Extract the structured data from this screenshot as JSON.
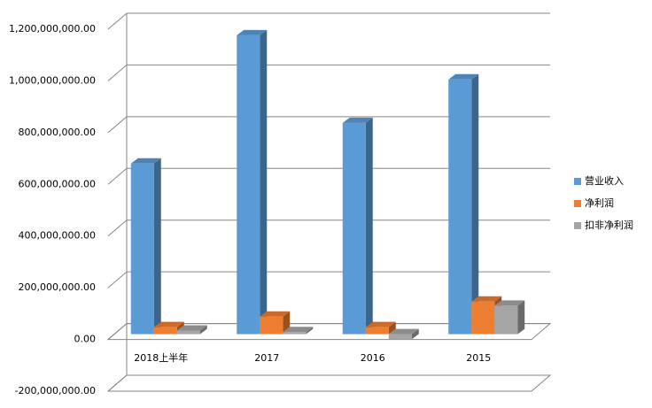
{
  "chart_data": {
    "type": "bar3d",
    "categories": [
      "2018上半年",
      "2017",
      "2016",
      "2015"
    ],
    "series": [
      {
        "name": "营业收入",
        "color": "#5b9bd5",
        "values": [
          660000000,
          1156000000,
          817000000,
          985000000
        ]
      },
      {
        "name": "净利润",
        "color": "#ed7d31",
        "values": [
          27000000,
          68000000,
          27000000,
          126000000
        ]
      },
      {
        "name": "扣非净利润",
        "color": "#a5a5a5",
        "values": [
          14000000,
          8000000,
          -20000000,
          110000000
        ]
      }
    ],
    "ylim": [
      -200000000,
      1200000000
    ],
    "yticks": [
      {
        "value": -200000000,
        "label": "-200,000,000.00"
      },
      {
        "value": 0,
        "label": "0.00"
      },
      {
        "value": 200000000,
        "label": "200,000,000.00"
      },
      {
        "value": 400000000,
        "label": "400,000,000.00"
      },
      {
        "value": 600000000,
        "label": "600,000,000.00"
      },
      {
        "value": 800000000,
        "label": "800,000,000.00"
      },
      {
        "value": 1000000000,
        "label": "1,000,000,000.00"
      },
      {
        "value": 1200000000,
        "label": "1,200,000,000.00"
      }
    ],
    "grid": true,
    "legend": "right"
  }
}
